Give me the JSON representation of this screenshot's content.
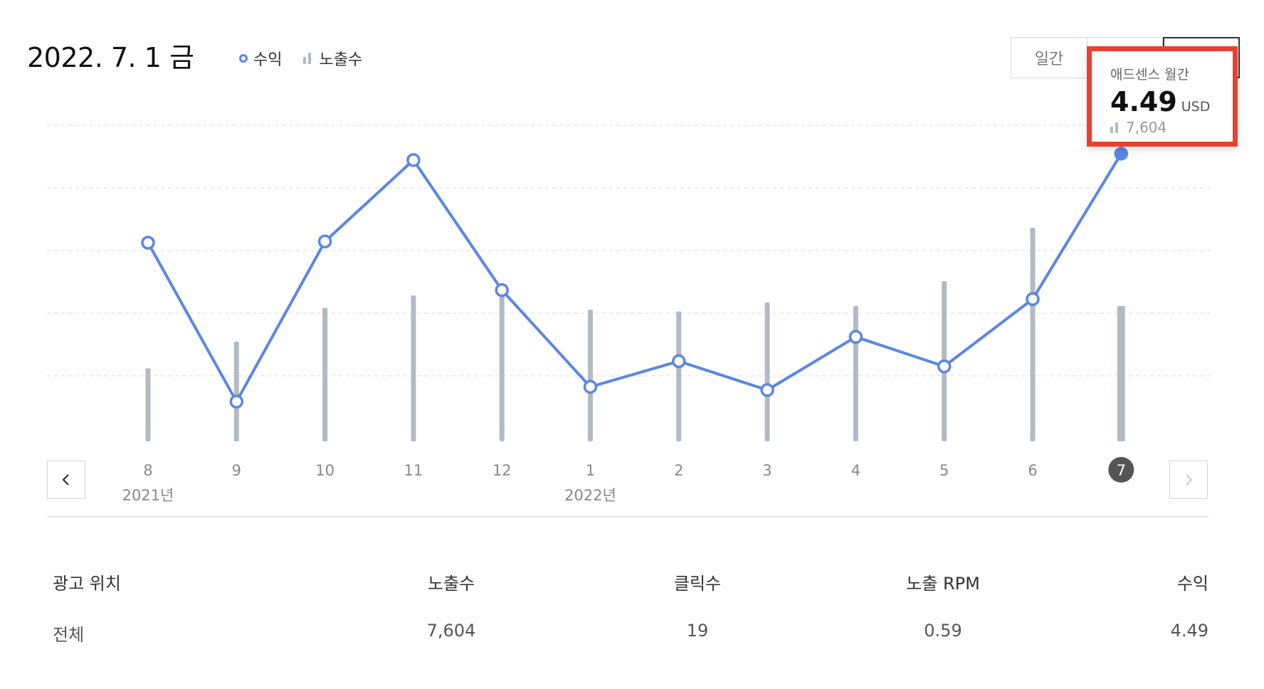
{
  "header": {
    "date": "2022. 7. 1 금",
    "legend": {
      "revenue": "수익",
      "impressions": "노출수"
    },
    "tabs": [
      {
        "label": "일간"
      },
      {
        "label": ""
      },
      {
        "label": ""
      }
    ]
  },
  "tooltip": {
    "title": "애드센스 월간",
    "value": "4.49",
    "unit": "USD",
    "impressions": "7,604"
  },
  "colors": {
    "revenue_line": "#5b86e5",
    "impression_bar": "#b2bac2",
    "highlight_box": "#e8412f"
  },
  "chart_data": {
    "type": "line+bar",
    "categories": [
      "8",
      "9",
      "10",
      "11",
      "12",
      "1",
      "2",
      "3",
      "4",
      "5",
      "6",
      "7"
    ],
    "year_labels": [
      {
        "index": 0,
        "label": "2021년"
      },
      {
        "index": 5,
        "label": "2022년"
      }
    ],
    "selected_index": 11,
    "series": [
      {
        "name": "수익",
        "type": "line",
        "values": [
          3.1,
          0.62,
          3.12,
          4.39,
          2.36,
          0.85,
          1.25,
          0.8,
          1.63,
          1.17,
          2.22,
          4.49
        ]
      },
      {
        "name": "노출수",
        "type": "bar",
        "values": [
          4100,
          5600,
          7500,
          8200,
          8900,
          7400,
          7300,
          7800,
          7600,
          9000,
          12000,
          7604
        ]
      }
    ],
    "revenue_ylim": [
      0,
      5.0
    ],
    "impressions_ylim": [
      0,
      18000
    ],
    "grid": true
  },
  "nav": {
    "prev_icon": "chevron-left-icon",
    "next_icon": "chevron-right-icon"
  },
  "table": {
    "headers": [
      "광고 위치",
      "노출수",
      "클릭수",
      "노출 RPM",
      "수익"
    ],
    "rows": [
      [
        "전체",
        "7,604",
        "19",
        "0.59",
        "4.49"
      ]
    ]
  }
}
